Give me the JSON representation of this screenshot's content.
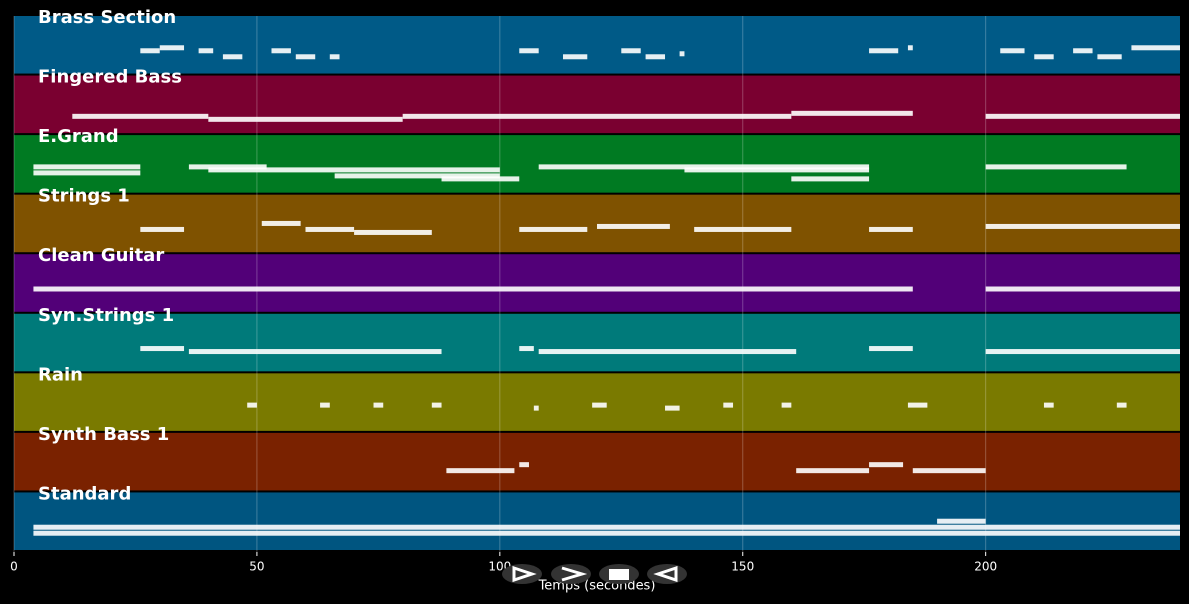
{
  "chart_data": {
    "type": "pianoroll",
    "x_label": "Temps (secondes)",
    "xlim": [
      0,
      240
    ],
    "xticks": [
      0,
      50,
      100,
      150,
      200
    ],
    "grid": true,
    "note_color": "#ffffff",
    "tracks": [
      {
        "name": "Brass Section",
        "color": "#005a87",
        "notes": [
          [
            26,
            30,
            5
          ],
          [
            30,
            35,
            6
          ],
          [
            38,
            41,
            5
          ],
          [
            43,
            47,
            3
          ],
          [
            53,
            57,
            5
          ],
          [
            58,
            62,
            3
          ],
          [
            65,
            67,
            3
          ],
          [
            104,
            108,
            5
          ],
          [
            113,
            118,
            3
          ],
          [
            125,
            129,
            5
          ],
          [
            130,
            134,
            3
          ],
          [
            137,
            138,
            4
          ],
          [
            176,
            182,
            5
          ],
          [
            184,
            185,
            6
          ],
          [
            203,
            208,
            5
          ],
          [
            210,
            214,
            3
          ],
          [
            218,
            222,
            5
          ],
          [
            223,
            228,
            3
          ],
          [
            230,
            240,
            6
          ]
        ]
      },
      {
        "name": "Fingered Bass",
        "color": "#7a0030",
        "notes": [
          [
            12,
            40,
            3
          ],
          [
            40,
            80,
            2
          ],
          [
            80,
            120,
            3
          ],
          [
            120,
            160,
            3
          ],
          [
            160,
            185,
            4
          ],
          [
            200,
            240,
            3
          ]
        ]
      },
      {
        "name": "E.Grand",
        "color": "#007a22",
        "notes": [
          [
            4,
            26,
            6
          ],
          [
            4,
            26,
            4
          ],
          [
            36,
            52,
            6
          ],
          [
            40,
            100,
            5
          ],
          [
            66,
            100,
            3
          ],
          [
            88,
            104,
            2
          ],
          [
            108,
            176,
            6
          ],
          [
            138,
            176,
            5
          ],
          [
            160,
            176,
            2
          ],
          [
            200,
            229,
            6
          ]
        ]
      },
      {
        "name": "Strings 1",
        "color": "#7f5200",
        "notes": [
          [
            26,
            35,
            5
          ],
          [
            51,
            59,
            7
          ],
          [
            60,
            70,
            5
          ],
          [
            70,
            86,
            4
          ],
          [
            104,
            118,
            5
          ],
          [
            120,
            135,
            6
          ],
          [
            140,
            160,
            5
          ],
          [
            176,
            185,
            5
          ],
          [
            200,
            240,
            6
          ]
        ]
      },
      {
        "name": "Clean Guitar",
        "color": "#520078",
        "notes": [
          [
            4,
            185,
            5
          ],
          [
            200,
            240,
            5
          ]
        ]
      },
      {
        "name": "Syn.Strings 1",
        "color": "#007a7a",
        "notes": [
          [
            26,
            35,
            5
          ],
          [
            36,
            88,
            4
          ],
          [
            104,
            107,
            5
          ],
          [
            108,
            161,
            4
          ],
          [
            176,
            185,
            5
          ],
          [
            200,
            240,
            4
          ]
        ]
      },
      {
        "name": "Rain",
        "color": "#7a7a00",
        "notes": [
          [
            48,
            50,
            6
          ],
          [
            63,
            65,
            6
          ],
          [
            74,
            76,
            6
          ],
          [
            86,
            88,
            6
          ],
          [
            107,
            108,
            5
          ],
          [
            119,
            122,
            6
          ],
          [
            134,
            137,
            5
          ],
          [
            146,
            148,
            6
          ],
          [
            158,
            160,
            6
          ],
          [
            184,
            188,
            6
          ],
          [
            212,
            214,
            6
          ],
          [
            227,
            229,
            6
          ]
        ]
      },
      {
        "name": "Synth Bass 1",
        "color": "#7a2200",
        "notes": [
          [
            89,
            103,
            4
          ],
          [
            104,
            106,
            6
          ],
          [
            161,
            176,
            4
          ],
          [
            176,
            183,
            6
          ],
          [
            185,
            200,
            4
          ]
        ]
      },
      {
        "name": "Standard",
        "color": "#005580",
        "notes": [
          [
            4,
            240,
            5
          ],
          [
            4,
            240,
            3
          ],
          [
            190,
            200,
            7
          ]
        ]
      }
    ]
  }
}
